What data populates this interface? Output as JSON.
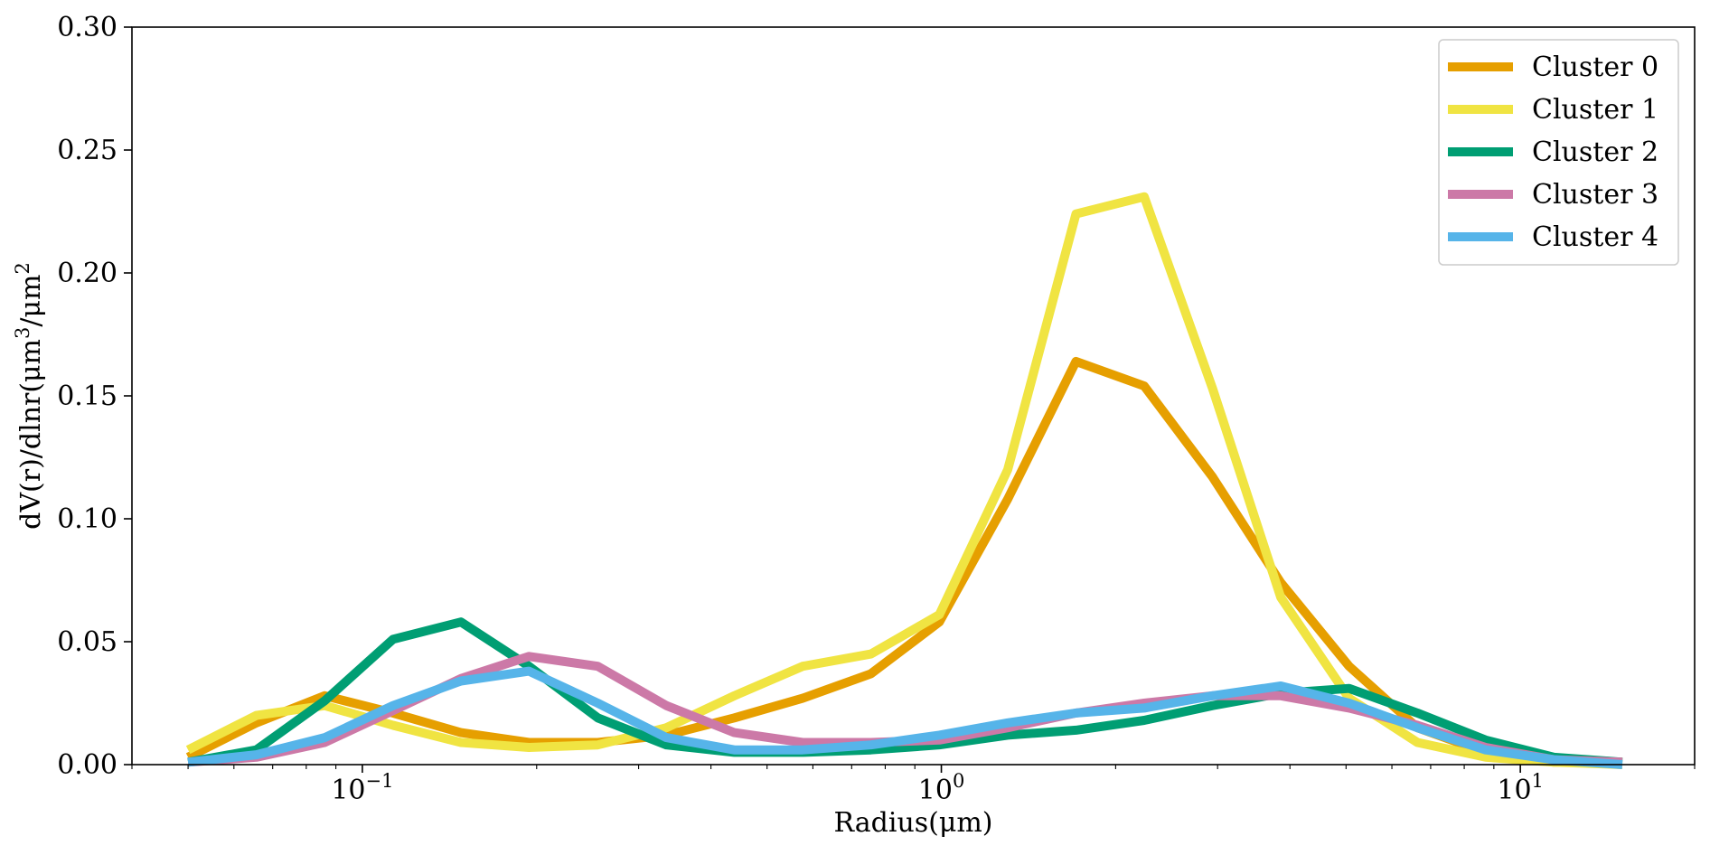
{
  "chart_data": {
    "type": "line",
    "xlabel": "Radius(μm)",
    "ylabel_parts": [
      "dV(r)/dlnr(μm",
      "3",
      "/μm",
      "2"
    ],
    "xscale": "log",
    "xlim": [
      0.04,
      20
    ],
    "ylim": [
      0,
      0.3
    ],
    "yticks": [
      0.0,
      0.05,
      0.1,
      0.15,
      0.2,
      0.25,
      0.3
    ],
    "yticklabels": [
      "0.00",
      "0.05",
      "0.10",
      "0.15",
      "0.20",
      "0.25",
      "0.30"
    ],
    "xticks": [
      {
        "value": 0.1,
        "base": "10",
        "exp": "−1"
      },
      {
        "value": 1,
        "base": "10",
        "exp": "0"
      },
      {
        "value": 10,
        "base": "10",
        "exp": "1"
      }
    ],
    "grid": false,
    "legend_position": "top-right",
    "x": [
      0.05,
      0.0656,
      0.0861,
      0.113,
      0.148,
      0.194,
      0.255,
      0.335,
      0.439,
      0.576,
      0.756,
      0.992,
      1.302,
      1.708,
      2.241,
      2.94,
      3.857,
      5.061,
      6.641,
      8.713,
      11.43,
      15.0
    ],
    "series": [
      {
        "name": "Cluster 0",
        "color": "#E69F00",
        "values": [
          0.003,
          0.017,
          0.028,
          0.021,
          0.013,
          0.009,
          0.009,
          0.012,
          0.019,
          0.027,
          0.037,
          0.058,
          0.108,
          0.164,
          0.154,
          0.117,
          0.074,
          0.04,
          0.015,
          0.005,
          0.001,
          0.001
        ]
      },
      {
        "name": "Cluster 1",
        "color": "#F0E442",
        "values": [
          0.006,
          0.02,
          0.024,
          0.016,
          0.009,
          0.007,
          0.008,
          0.015,
          0.028,
          0.04,
          0.045,
          0.061,
          0.12,
          0.224,
          0.231,
          0.153,
          0.068,
          0.027,
          0.009,
          0.003,
          0.001,
          0.0
        ]
      },
      {
        "name": "Cluster 2",
        "color": "#009E73",
        "values": [
          0.001,
          0.006,
          0.026,
          0.051,
          0.058,
          0.04,
          0.019,
          0.008,
          0.005,
          0.005,
          0.006,
          0.008,
          0.012,
          0.014,
          0.018,
          0.024,
          0.029,
          0.031,
          0.021,
          0.01,
          0.003,
          0.001
        ]
      },
      {
        "name": "Cluster 3",
        "color": "#CC79A7",
        "values": [
          0.001,
          0.003,
          0.009,
          0.022,
          0.035,
          0.044,
          0.04,
          0.024,
          0.013,
          0.009,
          0.009,
          0.01,
          0.015,
          0.021,
          0.025,
          0.028,
          0.028,
          0.023,
          0.016,
          0.007,
          0.002,
          0.001
        ]
      },
      {
        "name": "Cluster 4",
        "color": "#56B4E9",
        "values": [
          0.001,
          0.004,
          0.011,
          0.024,
          0.034,
          0.038,
          0.025,
          0.011,
          0.006,
          0.006,
          0.008,
          0.012,
          0.017,
          0.021,
          0.023,
          0.028,
          0.032,
          0.025,
          0.015,
          0.006,
          0.002,
          0.0
        ]
      }
    ]
  }
}
